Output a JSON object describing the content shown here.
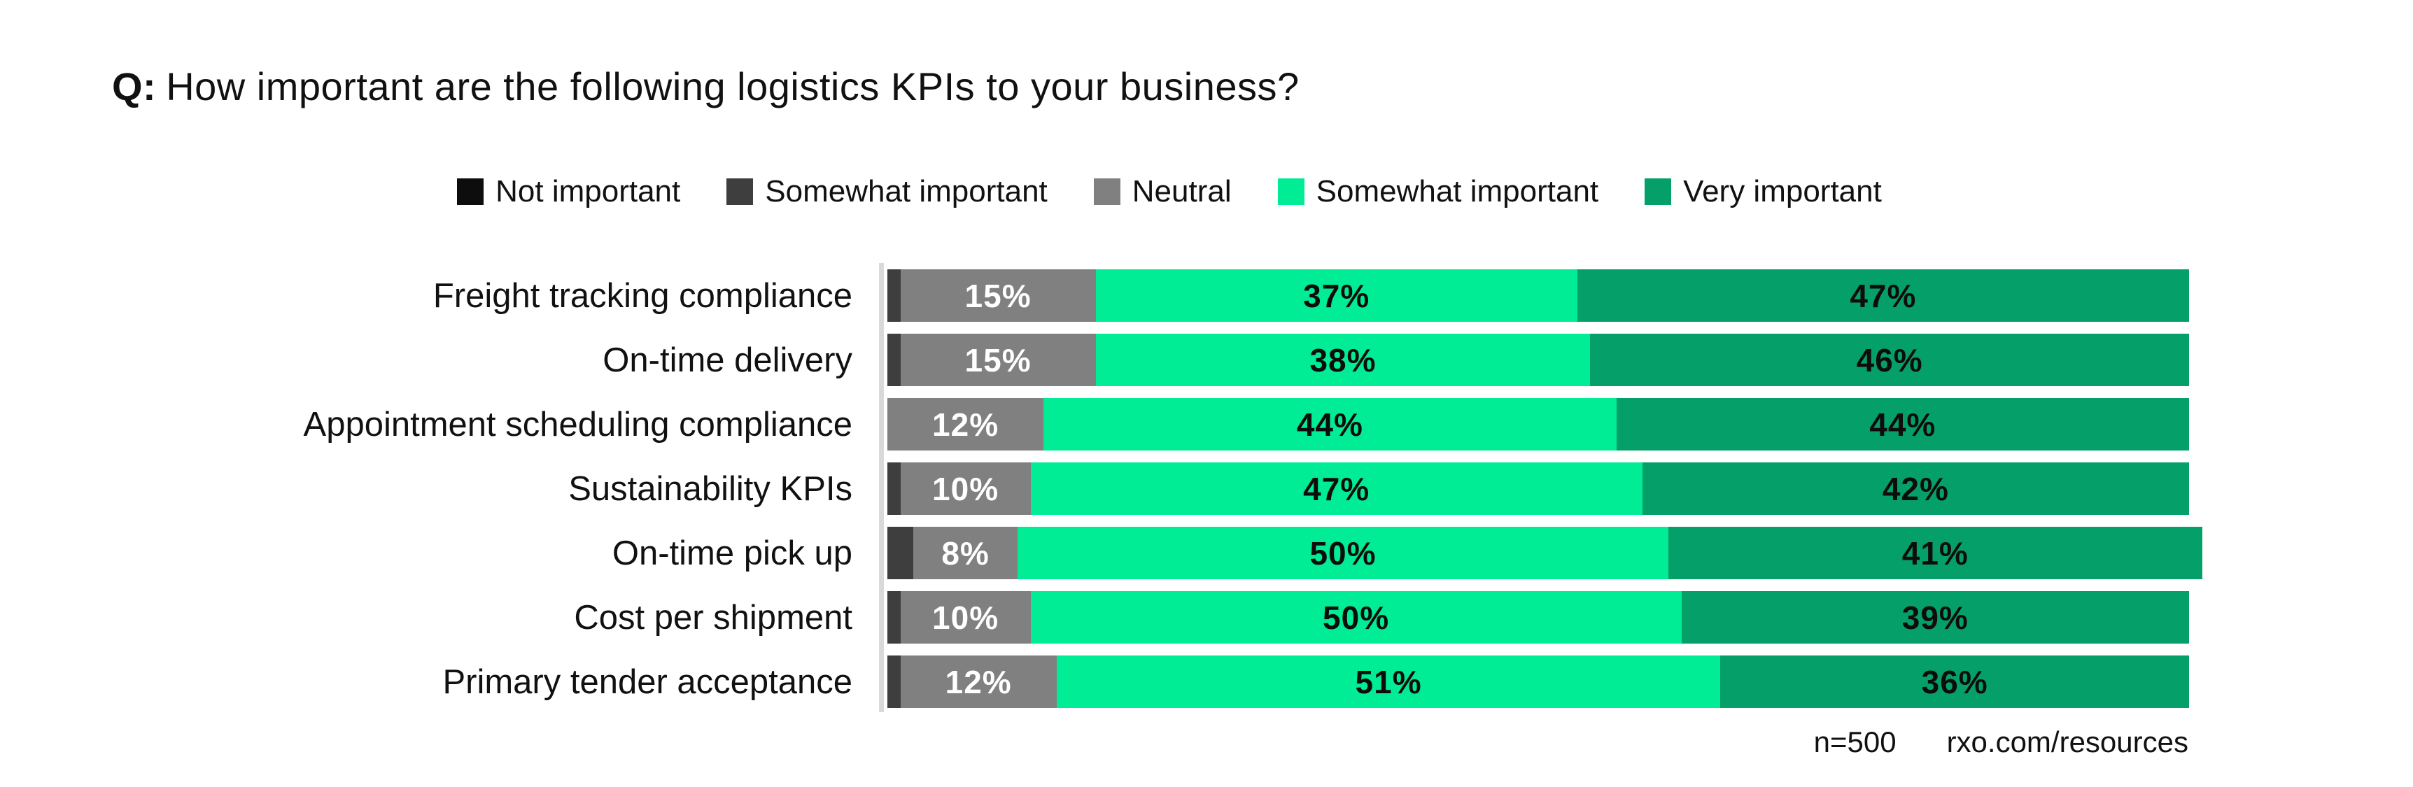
{
  "title": {
    "prefix": "Q:",
    "text": "How important are the following logistics KPIs to your business?"
  },
  "legend": [
    {
      "label": "Not important",
      "color": "#0d0d0d"
    },
    {
      "label": "Somewhat important",
      "color": "#3e3e3e"
    },
    {
      "label": "Neutral",
      "color": "#808080"
    },
    {
      "label": "Somewhat important",
      "color": "#00EC95"
    },
    {
      "label": "Very important",
      "color": "#05A069"
    }
  ],
  "footer": {
    "sample_size": "n=500",
    "source": "rxo.com/resources"
  },
  "chart_data": {
    "type": "bar",
    "orientation": "horizontal",
    "stacked": true,
    "units": "percent",
    "xlim": [
      0,
      100
    ],
    "grid": false,
    "legend_position": "top-center",
    "title": "Q: How important are the following logistics KPIs to your business?",
    "categories": [
      "Freight tracking compliance",
      "On-time delivery",
      "Appointment scheduling compliance",
      "Sustainability KPIs",
      "On-time pick up",
      "Cost per shipment",
      "Primary tender acceptance"
    ],
    "series": [
      {
        "name": "Not important",
        "color": "#0d0d0d",
        "values": [
          0,
          0,
          0,
          0,
          0,
          0,
          0
        ]
      },
      {
        "name": "Somewhat important",
        "color": "#3e3e3e",
        "values": [
          1,
          1,
          0,
          1,
          2,
          1,
          1
        ]
      },
      {
        "name": "Neutral",
        "color": "#808080",
        "values": [
          15,
          15,
          12,
          10,
          8,
          10,
          12
        ]
      },
      {
        "name": "Somewhat important",
        "color": "#00EC95",
        "values": [
          37,
          38,
          44,
          47,
          50,
          50,
          51
        ]
      },
      {
        "name": "Very important",
        "color": "#05A069",
        "values": [
          47,
          46,
          44,
          42,
          41,
          39,
          36
        ]
      }
    ],
    "rows": [
      {
        "category": "Freight tracking compliance",
        "segments": [
          {
            "name": "Somewhat important",
            "value": 1,
            "label": "",
            "color": "#3e3e3e",
            "label_color": "#ffffff"
          },
          {
            "name": "Neutral",
            "value": 15,
            "label": "15%",
            "color": "#808080",
            "label_color": "#ffffff"
          },
          {
            "name": "Somewhat important",
            "value": 37,
            "label": "37%",
            "color": "#00EC95",
            "label_color": "#0d0d0d"
          },
          {
            "name": "Very important",
            "value": 47,
            "label": "47%",
            "color": "#05A069",
            "label_color": "#0d0d0d"
          }
        ]
      },
      {
        "category": "On-time delivery",
        "segments": [
          {
            "name": "Somewhat important",
            "value": 1,
            "label": "",
            "color": "#3e3e3e",
            "label_color": "#ffffff"
          },
          {
            "name": "Neutral",
            "value": 15,
            "label": "15%",
            "color": "#808080",
            "label_color": "#ffffff"
          },
          {
            "name": "Somewhat important",
            "value": 38,
            "label": "38%",
            "color": "#00EC95",
            "label_color": "#0d0d0d"
          },
          {
            "name": "Very important",
            "value": 46,
            "label": "46%",
            "color": "#05A069",
            "label_color": "#0d0d0d"
          }
        ]
      },
      {
        "category": "Appointment scheduling compliance",
        "segments": [
          {
            "name": "Somewhat important",
            "value": 0,
            "label": "",
            "color": "#3e3e3e",
            "label_color": "#ffffff"
          },
          {
            "name": "Neutral",
            "value": 12,
            "label": "12%",
            "color": "#808080",
            "label_color": "#ffffff"
          },
          {
            "name": "Somewhat important",
            "value": 44,
            "label": "44%",
            "color": "#00EC95",
            "label_color": "#0d0d0d"
          },
          {
            "name": "Very important",
            "value": 44,
            "label": "44%",
            "color": "#05A069",
            "label_color": "#0d0d0d"
          }
        ]
      },
      {
        "category": "Sustainability KPIs",
        "segments": [
          {
            "name": "Somewhat important",
            "value": 1,
            "label": "",
            "color": "#3e3e3e",
            "label_color": "#ffffff"
          },
          {
            "name": "Neutral",
            "value": 10,
            "label": "10%",
            "color": "#808080",
            "label_color": "#ffffff"
          },
          {
            "name": "Somewhat important",
            "value": 47,
            "label": "47%",
            "color": "#00EC95",
            "label_color": "#0d0d0d"
          },
          {
            "name": "Very important",
            "value": 42,
            "label": "42%",
            "color": "#05A069",
            "label_color": "#0d0d0d"
          }
        ]
      },
      {
        "category": "On-time pick up",
        "segments": [
          {
            "name": "Somewhat important",
            "value": 2,
            "label": "",
            "color": "#3e3e3e",
            "label_color": "#ffffff"
          },
          {
            "name": "Neutral",
            "value": 8,
            "label": "8%",
            "color": "#808080",
            "label_color": "#ffffff"
          },
          {
            "name": "Somewhat important",
            "value": 50,
            "label": "50%",
            "color": "#00EC95",
            "label_color": "#0d0d0d"
          },
          {
            "name": "Very important",
            "value": 41,
            "label": "41%",
            "color": "#05A069",
            "label_color": "#0d0d0d"
          }
        ]
      },
      {
        "category": "Cost per shipment",
        "segments": [
          {
            "name": "Somewhat important",
            "value": 1,
            "label": "",
            "color": "#3e3e3e",
            "label_color": "#ffffff"
          },
          {
            "name": "Neutral",
            "value": 10,
            "label": "10%",
            "color": "#808080",
            "label_color": "#ffffff"
          },
          {
            "name": "Somewhat important",
            "value": 50,
            "label": "50%",
            "color": "#00EC95",
            "label_color": "#0d0d0d"
          },
          {
            "name": "Very important",
            "value": 39,
            "label": "39%",
            "color": "#05A069",
            "label_color": "#0d0d0d"
          }
        ]
      },
      {
        "category": "Primary tender acceptance",
        "segments": [
          {
            "name": "Somewhat important",
            "value": 1,
            "label": "",
            "color": "#3e3e3e",
            "label_color": "#ffffff"
          },
          {
            "name": "Neutral",
            "value": 12,
            "label": "12%",
            "color": "#808080",
            "label_color": "#ffffff"
          },
          {
            "name": "Somewhat important",
            "value": 51,
            "label": "51%",
            "color": "#00EC95",
            "label_color": "#0d0d0d"
          },
          {
            "name": "Very important",
            "value": 36,
            "label": "36%",
            "color": "#05A069",
            "label_color": "#0d0d0d"
          }
        ]
      }
    ]
  }
}
